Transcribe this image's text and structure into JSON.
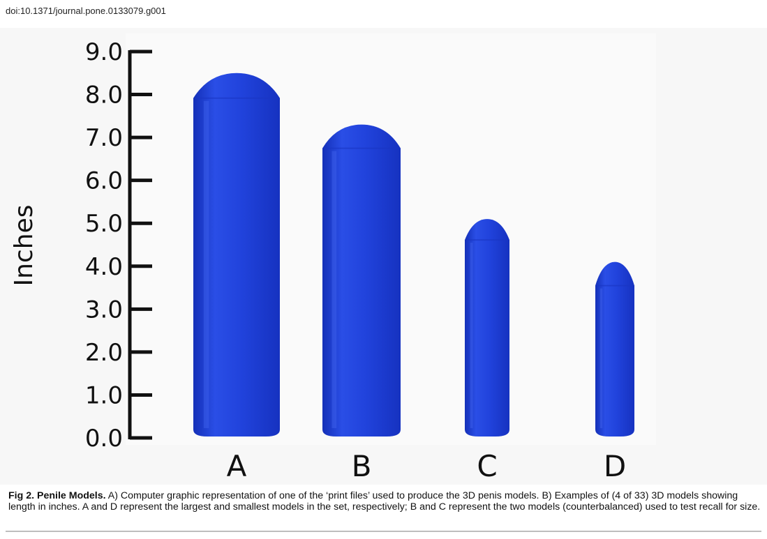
{
  "doi": "doi:10.1371/journal.pone.0133079.g001",
  "colors": {
    "model_blue": "#1f3fd8",
    "model_dark": "#1630b5",
    "model_light": "#3b5cf0",
    "axis": "#111111"
  },
  "chart_data": {
    "type": "bar",
    "ylabel": "Inches",
    "xlabel": "",
    "ylim": [
      0,
      9
    ],
    "yticks": [
      "0.0",
      "1.0",
      "2.0",
      "3.0",
      "4.0",
      "5.0",
      "6.0",
      "7.0",
      "8.0",
      "9.0"
    ],
    "categories": [
      "A",
      "B",
      "C",
      "D"
    ],
    "values": [
      8.5,
      7.3,
      5.1,
      4.1
    ],
    "grid": false
  },
  "caption": {
    "label": "Fig 2.",
    "title": "Penile Models.",
    "text": " A) Computer graphic representation of one of the ‘print files’ used to produce the 3D penis models. B) Examples of (4 of 33) 3D models showing length in inches. A and D represent the largest and smallest models in the set, respectively; B and C represent the two models (counterbalanced) used to test recall for size."
  }
}
